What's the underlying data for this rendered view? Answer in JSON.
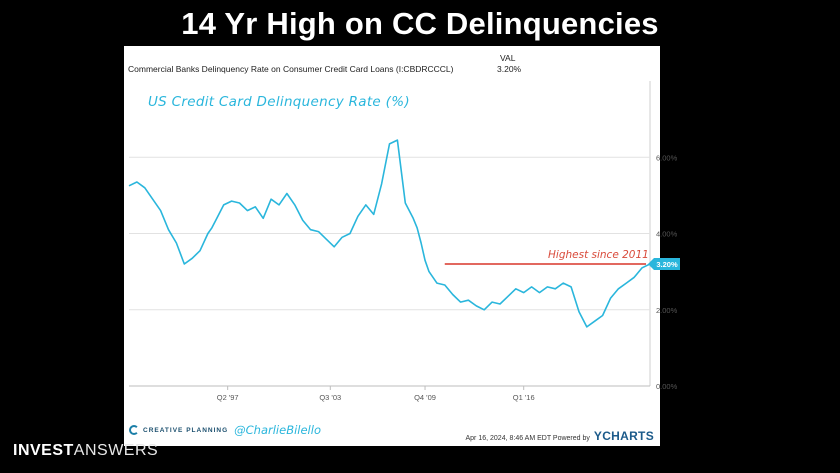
{
  "slide": {
    "title": "14 Yr High on CC Delinquencies",
    "brand_bold": "INVEST",
    "brand_light": "ANSWERS"
  },
  "chart_header": {
    "series_name": "Commercial Banks Delinquency Rate on Consumer Credit Card Loans (I:CBDRCCCL)",
    "val_label": "VAL",
    "val_value": "3.20%"
  },
  "overlay": {
    "title": "US Credit Card Delinquency Rate (%)",
    "annotation": "Highest since 2011",
    "handle": "@CharlieBilello"
  },
  "footer": {
    "logo_text": "CREATIVE PLANNING",
    "timestamp": "Apr 16, 2024, 8:46 AM EDT Powered by",
    "ycharts": "YCHARTS"
  },
  "colors": {
    "line": "#2ab6dc",
    "annotation_line": "#d9372a",
    "value_label_bg": "#2ab6dc",
    "gridline": "#e2e2e2"
  },
  "chart_data": {
    "type": "line",
    "title": "US Credit Card Delinquency Rate (%)",
    "ylim": [
      0,
      8
    ],
    "y_ticks": [
      0,
      2,
      4,
      6
    ],
    "y_tick_labels": [
      "0.00%",
      "2.00%",
      "4.00%",
      "6.00%"
    ],
    "x_range": [
      1991.0,
      2024.0
    ],
    "x_ticks": [
      1997.25,
      2003.75,
      2009.75,
      2016.0
    ],
    "x_tick_labels": [
      "Q2 '97",
      "Q3 '03",
      "Q4 '09",
      "Q1 '16"
    ],
    "grid": true,
    "series": [
      {
        "name": "",
        "x": [
          1991.0,
          1991.5,
          1992.0,
          1992.5,
          1993.0,
          1993.5,
          1994.0,
          1994.5,
          1995.0,
          1995.5,
          1996.0,
          1996.25,
          1996.5,
          1997.0,
          1997.5,
          1998.0,
          1998.5,
          1999.0,
          1999.5,
          2000.0,
          2000.5,
          2001.0,
          2001.5,
          2002.0,
          2002.5,
          2003.0,
          2003.5,
          2004.0,
          2004.5,
          2005.0,
          2005.5,
          2006.0,
          2006.5,
          2007.0,
          2007.5,
          2008.0,
          2008.5,
          2009.0,
          2009.25,
          2009.5,
          2009.75,
          2010.0,
          2010.5,
          2011.0,
          2011.5,
          2012.0,
          2012.5,
          2013.0,
          2013.5,
          2014.0,
          2014.5,
          2015.0,
          2015.5,
          2016.0,
          2016.5,
          2017.0,
          2017.5,
          2018.0,
          2018.5,
          2019.0,
          2019.5,
          2020.0,
          2020.5,
          2021.0,
          2021.5,
          2022.0,
          2022.5,
          2023.0,
          2023.5,
          2024.0
        ],
        "values": [
          5.25,
          5.35,
          5.2,
          4.9,
          4.6,
          4.1,
          3.75,
          3.2,
          3.35,
          3.55,
          4.0,
          4.15,
          4.35,
          4.75,
          4.85,
          4.8,
          4.6,
          4.7,
          4.4,
          4.9,
          4.75,
          5.05,
          4.75,
          4.35,
          4.1,
          4.05,
          3.85,
          3.65,
          3.9,
          4.0,
          4.45,
          4.75,
          4.5,
          5.3,
          6.35,
          6.45,
          4.8,
          4.4,
          4.15,
          3.75,
          3.3,
          3.0,
          2.7,
          2.65,
          2.4,
          2.2,
          2.25,
          2.1,
          2.0,
          2.2,
          2.15,
          2.35,
          2.55,
          2.45,
          2.6,
          2.45,
          2.6,
          2.55,
          2.7,
          2.6,
          1.95,
          1.55,
          1.7,
          1.85,
          2.3,
          2.55,
          2.7,
          2.85,
          3.1,
          3.2
        ]
      }
    ],
    "reference_line": {
      "value": 3.2,
      "label": "Highest since 2011",
      "from_x": 2011.0
    },
    "last_value_label": "3.20%"
  }
}
